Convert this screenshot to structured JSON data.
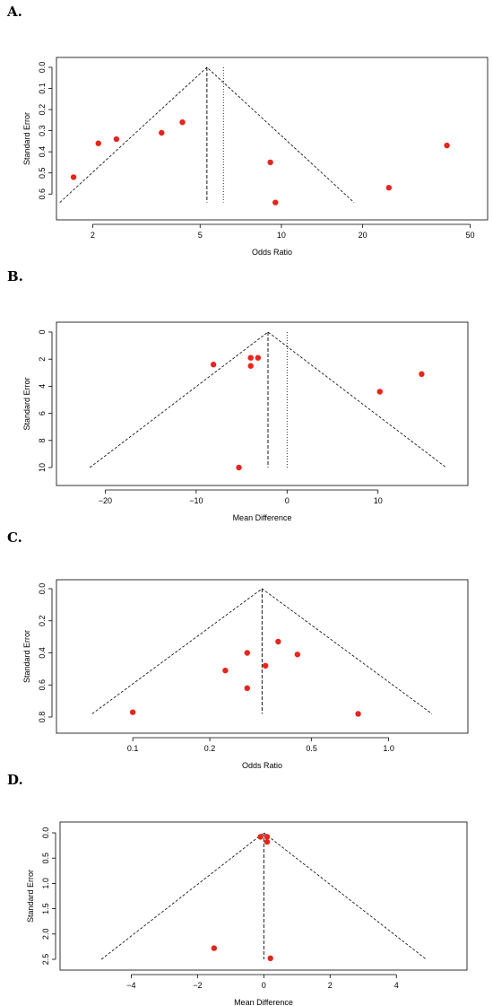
{
  "panels": [
    {
      "label": "A."
    },
    {
      "label": "B."
    },
    {
      "label": "C."
    },
    {
      "label": "D."
    }
  ],
  "chart_data": [
    {
      "type": "scatter",
      "title": "",
      "xlabel": "Odds Ratio",
      "ylabel": "Standard Error",
      "x_scale": "log",
      "xlim": [
        1.55,
        55
      ],
      "ylim": [
        0,
        0.65
      ],
      "y_inverted": true,
      "xticks": [
        2,
        5,
        10,
        20,
        50
      ],
      "yticks": [
        0.0,
        0.1,
        0.2,
        0.3,
        0.4,
        0.5,
        0.6
      ],
      "ytick_labels": [
        "0.0",
        "0.1",
        "0.2",
        "0.3",
        "0.4",
        "0.5",
        "0.6"
      ],
      "points_color": "#e8251b",
      "pooled_estimate": 5.3,
      "reference_line": 6.1,
      "funnel_se_max": 0.64,
      "points": [
        {
          "x": 1.7,
          "y": 0.52
        },
        {
          "x": 2.1,
          "y": 0.36
        },
        {
          "x": 2.45,
          "y": 0.34
        },
        {
          "x": 3.6,
          "y": 0.31
        },
        {
          "x": 4.3,
          "y": 0.26
        },
        {
          "x": 9.1,
          "y": 0.45
        },
        {
          "x": 9.5,
          "y": 0.64
        },
        {
          "x": 25,
          "y": 0.57
        },
        {
          "x": 41,
          "y": 0.37
        }
      ]
    },
    {
      "type": "scatter",
      "title": "",
      "xlabel": "Mean Difference",
      "ylabel": "Standard Error",
      "x_scale": "linear",
      "xlim": [
        -23,
        19
      ],
      "ylim": [
        0,
        10
      ],
      "y_inverted": true,
      "xticks": [
        -20,
        -10,
        0,
        10
      ],
      "xtick_labels": [
        "−20",
        "−10",
        "0",
        "10"
      ],
      "yticks": [
        0,
        2,
        4,
        6,
        8,
        10
      ],
      "ytick_labels": [
        "0",
        "2",
        "4",
        "6",
        "8",
        "10"
      ],
      "points_color": "#e8251b",
      "pooled_estimate": -2.1,
      "reference_line": 0,
      "funnel_se_max": 10,
      "points": [
        {
          "x": -8.1,
          "y": 2.4
        },
        {
          "x": -4.0,
          "y": 1.9
        },
        {
          "x": -4.0,
          "y": 2.5
        },
        {
          "x": -3.2,
          "y": 1.9
        },
        {
          "x": -5.3,
          "y": 10.0
        },
        {
          "x": 10.2,
          "y": 4.4
        },
        {
          "x": 14.8,
          "y": 3.1
        }
      ]
    },
    {
      "type": "scatter",
      "title": "",
      "xlabel": "Odds Ratio",
      "ylabel": "Standard Error",
      "x_scale": "log",
      "xlim": [
        0.055,
        1.75
      ],
      "ylim": [
        0,
        0.8
      ],
      "y_inverted": true,
      "xticks": [
        0.1,
        0.2,
        0.5,
        1.0
      ],
      "xtick_labels": [
        "0.1",
        "0.2",
        "0.5",
        "1.0"
      ],
      "yticks": [
        0.0,
        0.2,
        0.4,
        0.6,
        0.8
      ],
      "ytick_labels": [
        "0.0",
        "0.2",
        "0.4",
        "0.6",
        "0.8"
      ],
      "points_color": "#e8251b",
      "pooled_estimate": 0.32,
      "funnel_se_max": 0.78,
      "points": [
        {
          "x": 0.1,
          "y": 0.77
        },
        {
          "x": 0.23,
          "y": 0.51
        },
        {
          "x": 0.28,
          "y": 0.4
        },
        {
          "x": 0.28,
          "y": 0.62
        },
        {
          "x": 0.33,
          "y": 0.48
        },
        {
          "x": 0.37,
          "y": 0.33
        },
        {
          "x": 0.44,
          "y": 0.41
        },
        {
          "x": 0.76,
          "y": 0.78
        }
      ]
    },
    {
      "type": "scatter",
      "title": "",
      "xlabel": "Mean Difference",
      "ylabel": "Standard Error",
      "x_scale": "linear",
      "xlim": [
        -5.2,
        5.4
      ],
      "ylim": [
        0,
        2.5
      ],
      "y_inverted": true,
      "xticks": [
        -4,
        -2,
        0,
        2,
        4
      ],
      "xtick_labels": [
        "−4",
        "−2",
        "0",
        "2",
        "4"
      ],
      "yticks": [
        0.0,
        0.5,
        1.0,
        1.5,
        2.0,
        2.5
      ],
      "ytick_labels": [
        "0.0",
        "0.5",
        "1.0",
        "1.5",
        "2.0",
        "2.5"
      ],
      "points_color": "#e8251b",
      "pooled_estimate": 0.0,
      "funnel_se_max": 2.5,
      "points": [
        {
          "x": -0.1,
          "y": 0.08
        },
        {
          "x": 0.1,
          "y": 0.08
        },
        {
          "x": 0.1,
          "y": 0.18
        },
        {
          "x": -1.5,
          "y": 2.28
        },
        {
          "x": 0.2,
          "y": 2.48
        }
      ]
    }
  ]
}
